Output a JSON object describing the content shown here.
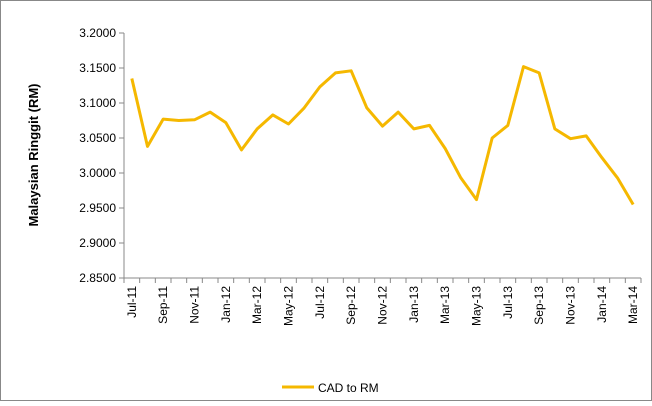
{
  "chart_data": {
    "type": "line",
    "y_label": "Malaysian Ringgit (RM)",
    "categories": [
      "Jul-11",
      null,
      "Sep-11",
      null,
      "Nov-11",
      null,
      "Jan-12",
      null,
      "Mar-12",
      null,
      "May-12",
      null,
      "Jul-12",
      null,
      "Sep-12",
      null,
      "Nov-12",
      null,
      "Jan-13",
      null,
      "Mar-13",
      null,
      "May-13",
      null,
      "Jul-13",
      null,
      "Sep-13",
      null,
      "Nov-13",
      null,
      "Jan-14",
      null,
      "Mar-14"
    ],
    "series": [
      {
        "name": "CAD to RM",
        "color": "#f5b800",
        "values": [
          3.135,
          3.038,
          3.077,
          3.075,
          3.076,
          3.087,
          3.072,
          3.033,
          3.063,
          3.083,
          3.07,
          3.093,
          3.123,
          3.143,
          3.146,
          3.093,
          3.067,
          3.087,
          3.063,
          3.068,
          3.035,
          2.993,
          2.962,
          3.05,
          3.068,
          3.152,
          3.143,
          3.063,
          3.049,
          3.053,
          3.022,
          2.993,
          2.955
        ]
      }
    ],
    "ylim": [
      2.85,
      3.2
    ],
    "yticks": [
      {
        "value": 2.85,
        "label": "2.8500"
      },
      {
        "value": 2.9,
        "label": "2.9000"
      },
      {
        "value": 2.95,
        "label": "2.9500"
      },
      {
        "value": 3.0,
        "label": "3.0000"
      },
      {
        "value": 3.05,
        "label": "3.0500"
      },
      {
        "value": 3.1,
        "label": "3.1000"
      },
      {
        "value": 3.15,
        "label": "3.1500"
      },
      {
        "value": 3.2,
        "label": "3.2000"
      }
    ],
    "grid": false,
    "legend": "bottom"
  }
}
